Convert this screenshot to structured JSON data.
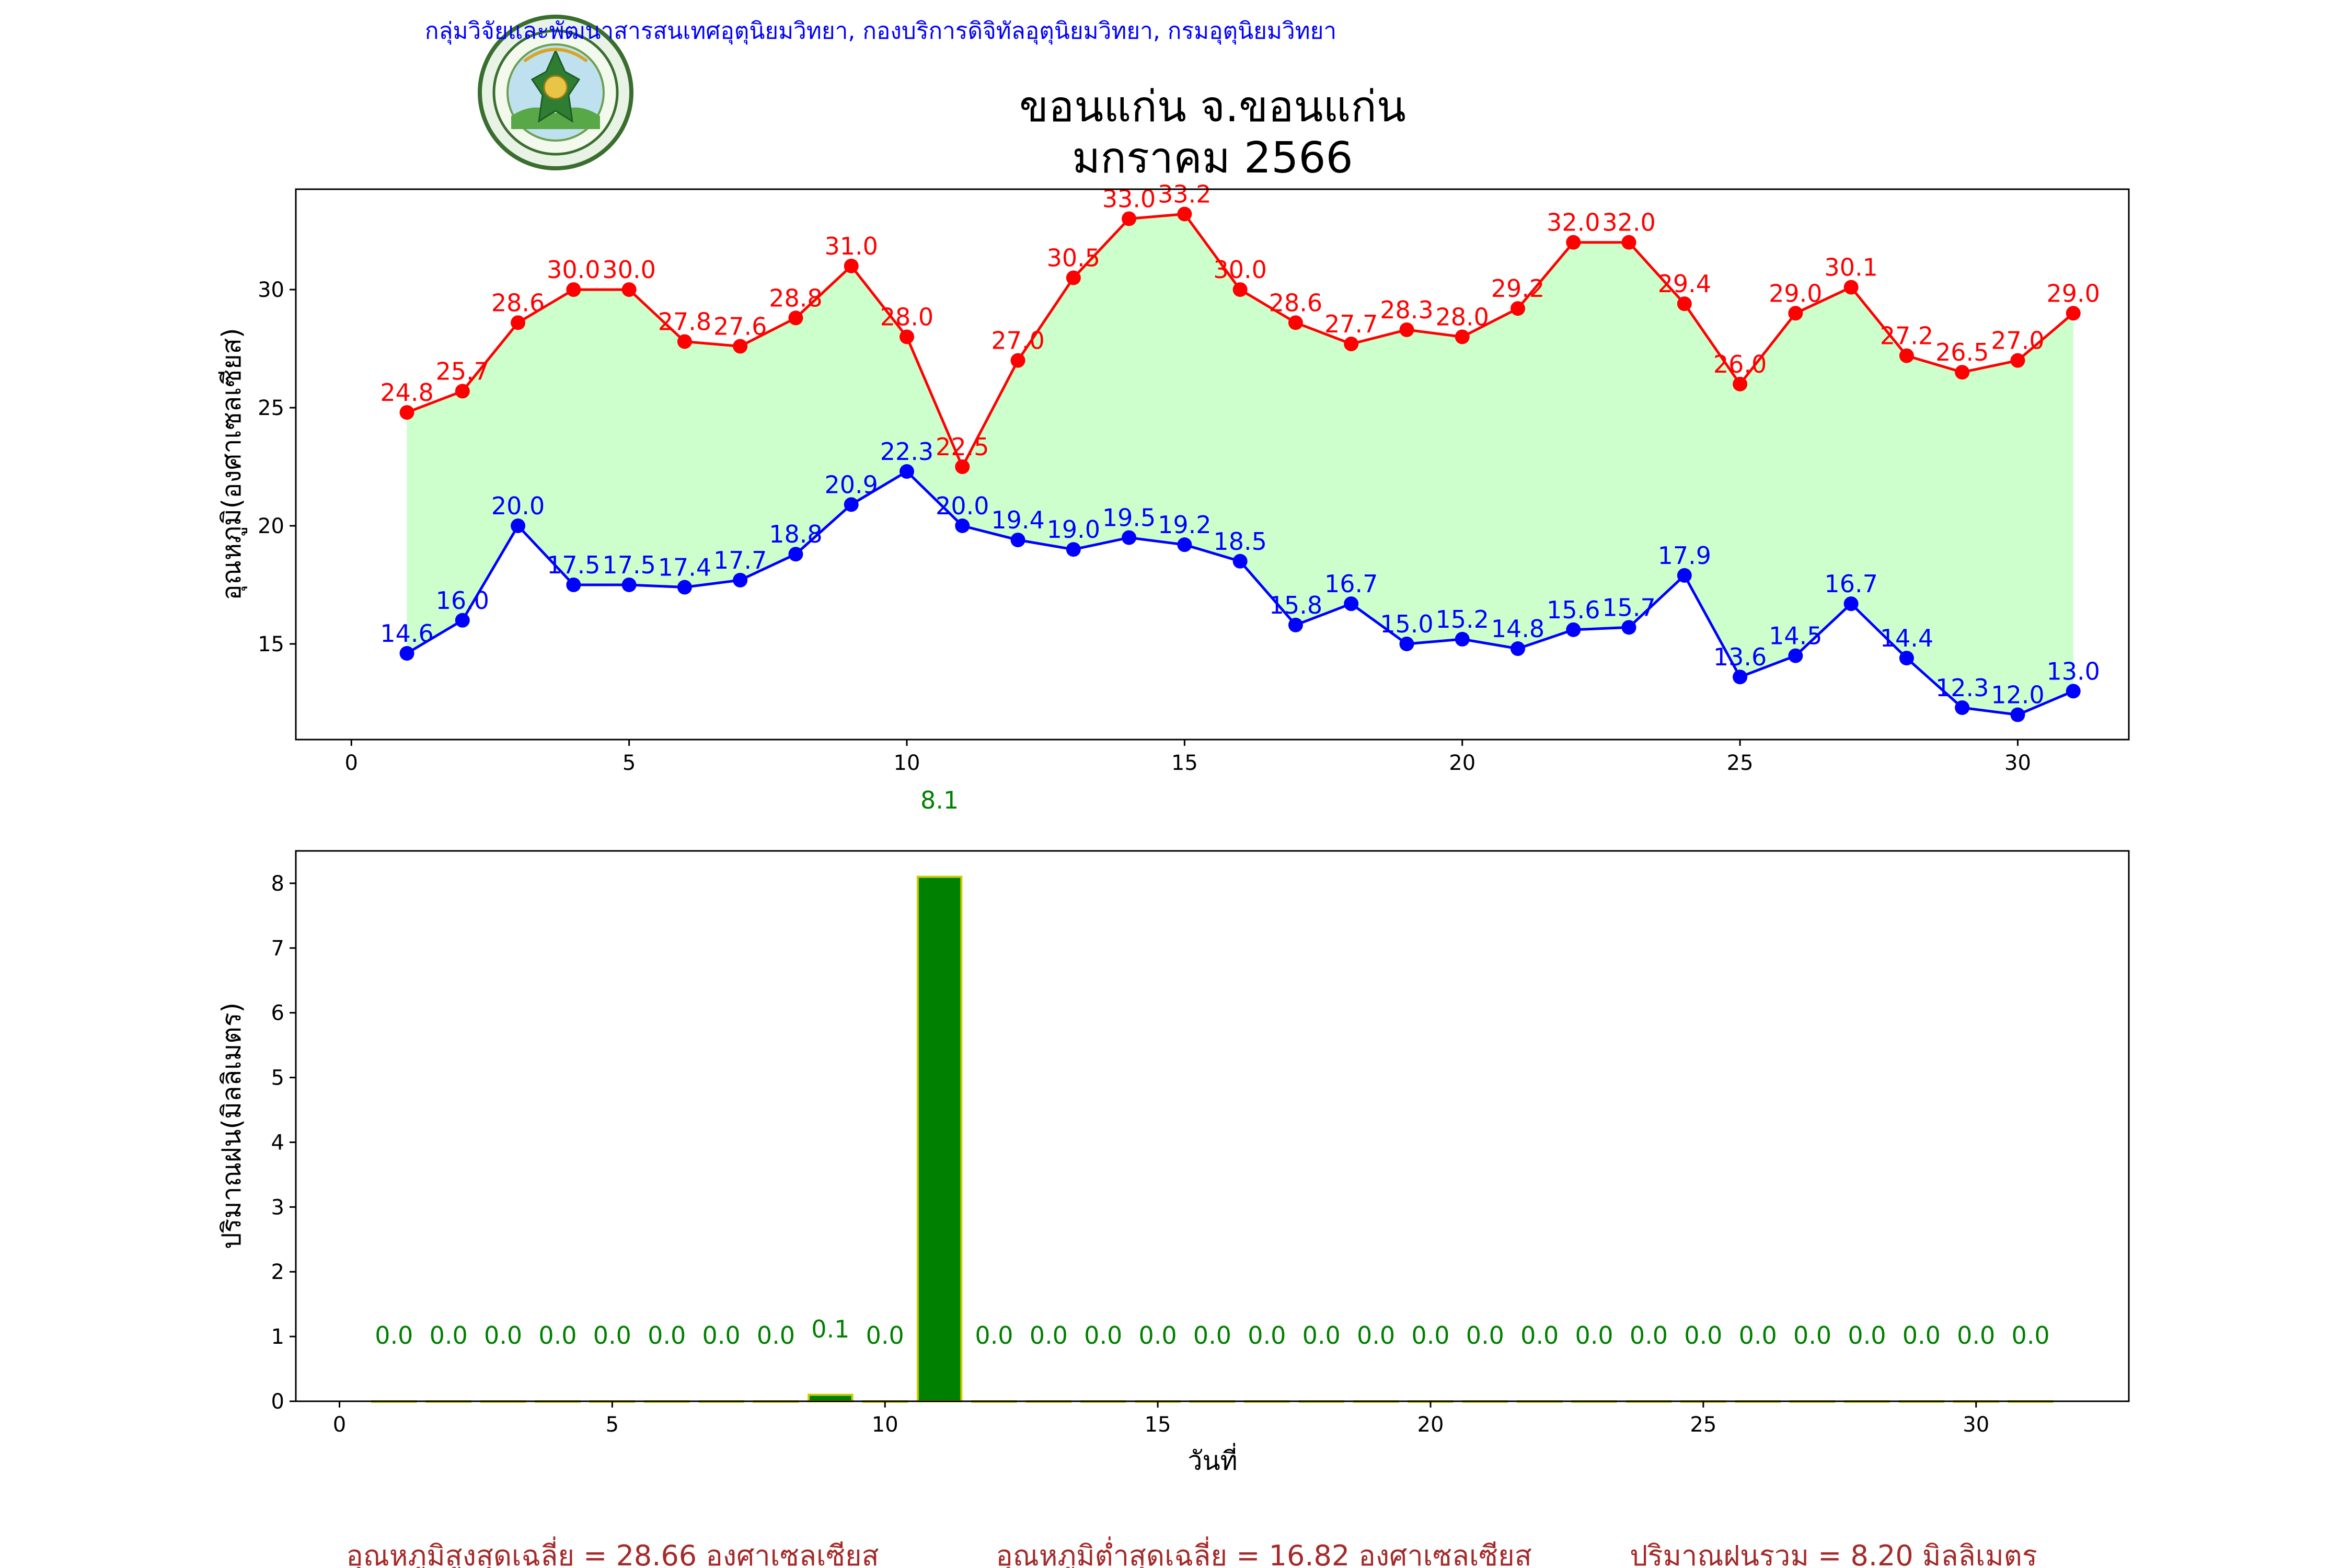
{
  "header": {
    "organization": "กลุ่มวิจัยและพัฒนาสารสนเทศอุตุนิยมวิทยา, กองบริการดิจิทัลอุตุนิยมวิทยา, กรมอุตุนิยมวิทยา",
    "title_line1": "ขอนแก่น จ.ขอนแก่น",
    "title_line2": "มกราคม 2566",
    "logo_text": "กรมอุตุนิยมวิทยา METEOROLOGICAL DEPARTMENT"
  },
  "colors": {
    "max": "#ff0000",
    "min": "#0000ff",
    "fill": "#ccffcc",
    "rain_bar": "#008000",
    "rain_edge": "#cccc00",
    "rain_label": "#008000",
    "header": "#0000ff",
    "footer": "#a52a2a"
  },
  "chart_data": [
    {
      "type": "line",
      "x": [
        1,
        2,
        3,
        4,
        5,
        6,
        7,
        8,
        9,
        10,
        11,
        12,
        13,
        14,
        15,
        16,
        17,
        18,
        19,
        20,
        21,
        22,
        23,
        24,
        25,
        26,
        27,
        28,
        29,
        30,
        31
      ],
      "series": [
        {
          "key": "max",
          "values": [
            24.8,
            25.7,
            28.6,
            30.0,
            30.0,
            27.8,
            27.6,
            28.8,
            31.0,
            28.0,
            22.5,
            27.0,
            30.5,
            33.0,
            33.2,
            30.0,
            28.6,
            27.7,
            28.3,
            28.0,
            29.2,
            32.0,
            32.0,
            29.4,
            26.0,
            29.0,
            30.1,
            27.2,
            26.5,
            27.0,
            29.0
          ]
        },
        {
          "key": "min",
          "values": [
            14.6,
            16.0,
            20.0,
            17.5,
            17.5,
            17.4,
            17.7,
            18.8,
            20.9,
            22.3,
            20.0,
            19.4,
            19.0,
            19.5,
            19.2,
            18.5,
            15.8,
            16.7,
            15.0,
            15.2,
            14.8,
            15.6,
            15.7,
            17.9,
            13.6,
            14.5,
            16.7,
            14.4,
            12.3,
            12.0,
            13.0
          ]
        }
      ],
      "xlim": [
        -1,
        32
      ],
      "ylim": [
        10.95,
        34.25
      ],
      "xticks": [
        0,
        5,
        10,
        15,
        20,
        25,
        30
      ],
      "yticks": [
        15,
        20,
        25,
        30
      ],
      "ylabel": "อุณหภูมิ(องศาเซลเซียส)",
      "xlabel": ""
    },
    {
      "type": "bar",
      "x": [
        1,
        2,
        3,
        4,
        5,
        6,
        7,
        8,
        9,
        10,
        11,
        12,
        13,
        14,
        15,
        16,
        17,
        18,
        19,
        20,
        21,
        22,
        23,
        24,
        25,
        26,
        27,
        28,
        29,
        30,
        31
      ],
      "values": [
        0.0,
        0.0,
        0.0,
        0.0,
        0.0,
        0.0,
        0.0,
        0.0,
        0.1,
        0.0,
        8.1,
        0.0,
        0.0,
        0.0,
        0.0,
        0.0,
        0.0,
        0.0,
        0.0,
        0.0,
        0.0,
        0.0,
        0.0,
        0.0,
        0.0,
        0.0,
        0.0,
        0.0,
        0.0,
        0.0,
        0.0
      ],
      "xlim": [
        -0.8,
        32.8
      ],
      "ylim": [
        0,
        8.5
      ],
      "xticks": [
        0,
        5,
        10,
        15,
        20,
        25,
        30
      ],
      "yticks": [
        0,
        1,
        2,
        3,
        4,
        5,
        6,
        7,
        8
      ],
      "ylabel": "ปริมาณฝน(มิลลิเมตร)",
      "xlabel": "วันที่"
    }
  ],
  "footer": {
    "avg_max": "อุณหภูมิสูงสุดเฉลี่ย = 28.66 องศาเซลเซียส",
    "avg_min": "อุณหภูมิต่ำสุดเฉลี่ย = 16.82 องศาเซลเซียส",
    "total_rain": "ปริมาณฝนรวม = 8.20 มิลลิเมตร"
  }
}
